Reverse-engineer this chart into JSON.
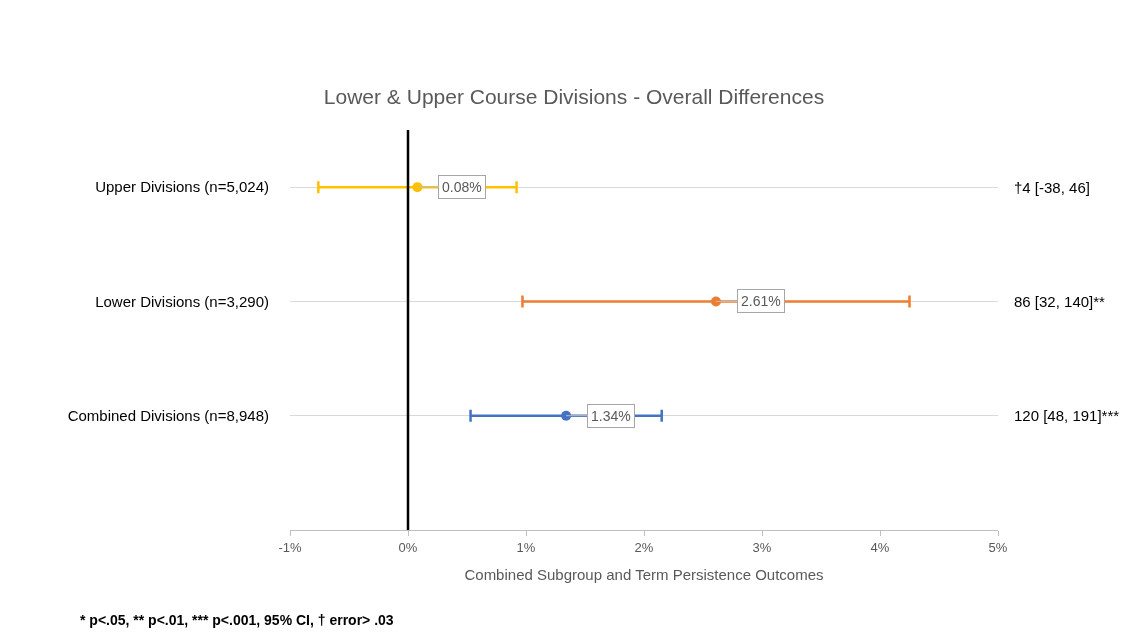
{
  "chart_data": {
    "type": "scatter",
    "orientation": "horizontal",
    "title": "Lower & Upper Course Divisions - Overall Differences",
    "xlabel": "Combined Subgroup and Term Persistence Outcomes",
    "categories": [
      "Upper Divisions (n=5,024)",
      "Lower Divisions (n=3,290)",
      "Combined Divisions (n=8,948)"
    ],
    "values": [
      0.08,
      2.61,
      1.34
    ],
    "colors": [
      "#ffc000",
      "#ed7d31",
      "#4472c4"
    ],
    "errors": [
      [
        -0.76,
        0.92
      ],
      [
        0.97,
        4.25
      ],
      [
        0.53,
        2.15
      ]
    ],
    "value_labels": [
      "0.08%",
      "2.61%",
      "1.34%"
    ],
    "xlim": [
      -1,
      5
    ],
    "xticks": [
      {
        "value": -1,
        "label": "-1%"
      },
      {
        "value": 0,
        "label": "0%"
      },
      {
        "value": 1,
        "label": "1%"
      },
      {
        "value": 2,
        "label": "2%"
      },
      {
        "value": 3,
        "label": "3%"
      },
      {
        "value": 4,
        "label": "4%"
      },
      {
        "value": 5,
        "label": "5%"
      }
    ],
    "ref_lines": [
      {
        "axis": "x",
        "value": 0,
        "color": "#000000"
      }
    ],
    "annotations": [
      "†4 [-38, 46]",
      "86 [32, 140]**",
      "120 [48, 191]***",
      "* p<.05, ** p<.01, *** p<.001, 95% CI, † error> .03"
    ],
    "grid": "y",
    "marker": "circle"
  }
}
